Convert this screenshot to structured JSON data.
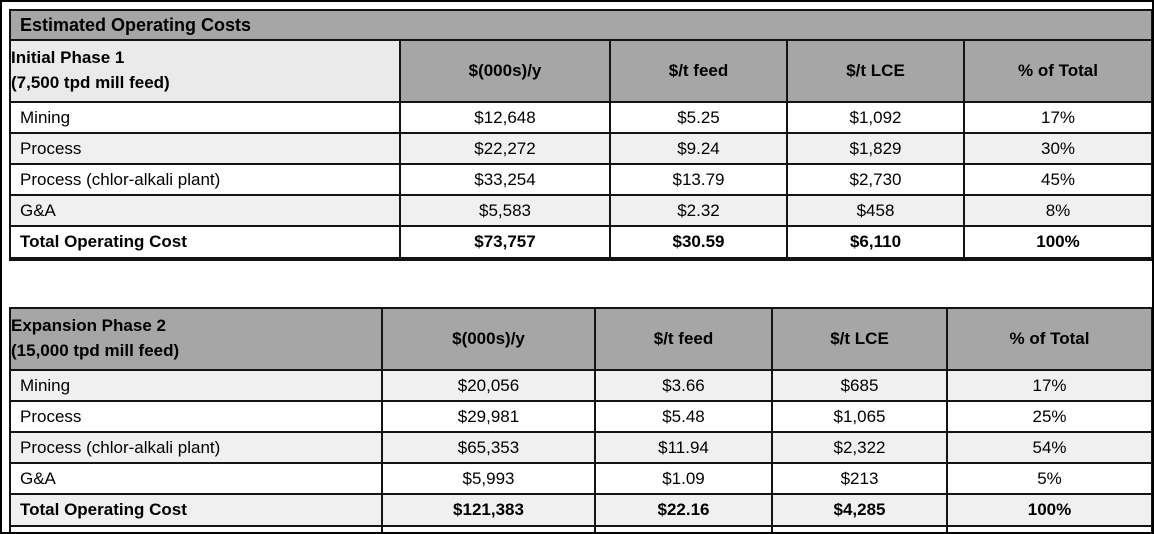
{
  "colors": {
    "header_gray": "#a6a6a6",
    "band_gray": "#f0f0f0",
    "phase1_gray": "#eaeaea",
    "grid_border": "#141414"
  },
  "table1": {
    "title": "Estimated Operating Costs",
    "phase_line1": "Initial Phase 1",
    "phase_line2": "(7,500 tpd mill feed)",
    "columns": [
      "$(000s)/y",
      "$/t feed",
      "$/t LCE",
      "% of Total"
    ],
    "rows": [
      [
        "Mining",
        "$12,648",
        "$5.25",
        "$1,092",
        "17%"
      ],
      [
        "Process",
        "$22,272",
        "$9.24",
        "$1,829",
        "30%"
      ],
      [
        "Process (chlor-alkali plant)",
        "$33,254",
        "$13.79",
        "$2,730",
        "45%"
      ],
      [
        "G&A",
        "$5,583",
        "$2.32",
        "$458",
        "8%"
      ],
      [
        "Total Operating Cost",
        "$73,757",
        "$30.59",
        "$6,110",
        "100%"
      ]
    ]
  },
  "table2": {
    "phase_line1": "Expansion Phase 2",
    "phase_line2": "(15,000 tpd mill feed)",
    "columns": [
      "$(000s)/y",
      "$/t feed",
      "$/t LCE",
      "% of Total"
    ],
    "rows": [
      [
        "Mining",
        "$20,056",
        "$3.66",
        "$685",
        "17%"
      ],
      [
        "Process",
        "$29,981",
        "$5.48",
        "$1,065",
        "25%"
      ],
      [
        "Process (chlor-alkali plant)",
        "$65,353",
        "$11.94",
        "$2,322",
        "54%"
      ],
      [
        "G&A",
        "$5,993",
        "$1.09",
        "$213",
        "5%"
      ],
      [
        "Total Operating Cost",
        "$121,383",
        "$22.16",
        "$4,285",
        "100%"
      ]
    ]
  }
}
